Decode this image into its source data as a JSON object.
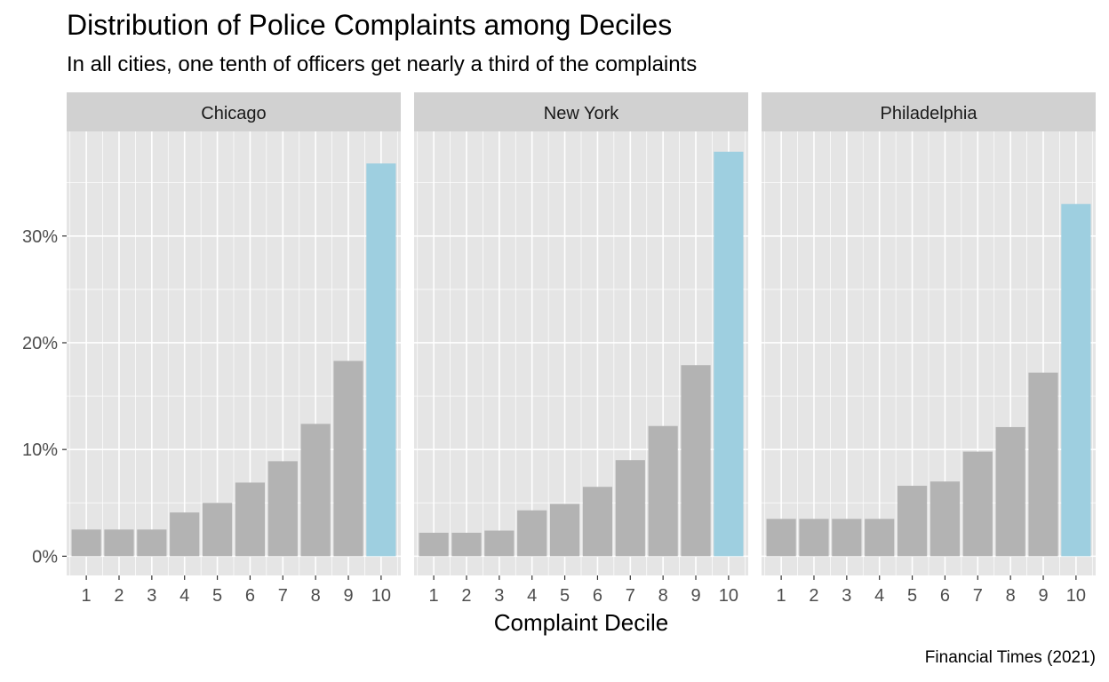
{
  "title": "Distribution of Police Complaints among Deciles",
  "subtitle": "In all cities, one tenth of officers get nearly a third of the complaints",
  "caption": "Financial Times (2021)",
  "colors": {
    "bar_default": "#b3b3b3",
    "bar_highlight": "#9ecfe0",
    "panel_bg": "#e5e5e5",
    "strip_bg": "#d1d1d1",
    "grid": "#ffffff"
  },
  "chart_data": {
    "type": "bar",
    "facets": [
      {
        "name": "Chicago",
        "values": [
          2.5,
          2.5,
          2.5,
          4.1,
          5.0,
          6.9,
          8.9,
          12.4,
          18.3,
          36.8
        ]
      },
      {
        "name": "New York",
        "values": [
          2.2,
          2.2,
          2.4,
          4.3,
          4.9,
          6.5,
          9.0,
          12.2,
          17.9,
          37.9
        ]
      },
      {
        "name": "Philadelphia",
        "values": [
          3.5,
          3.5,
          3.5,
          3.5,
          6.6,
          7.0,
          9.8,
          12.1,
          17.2,
          33.0
        ]
      }
    ],
    "categories": [
      "1",
      "2",
      "3",
      "4",
      "5",
      "6",
      "7",
      "8",
      "9",
      "10"
    ],
    "highlight_category": "10",
    "xlabel": "Complaint Decile",
    "ylabel": "",
    "y_ticks": [
      0,
      10,
      20,
      30
    ],
    "y_tick_labels": [
      "0%",
      "10%",
      "20%",
      "30%"
    ],
    "ylim": [
      -1.8,
      39.8
    ],
    "grid": true,
    "legend": "none"
  }
}
